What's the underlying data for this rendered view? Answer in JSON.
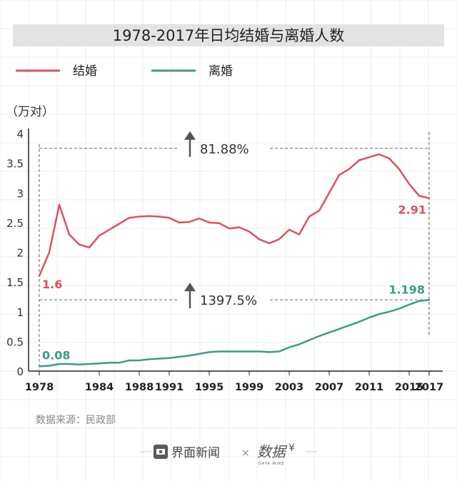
{
  "chart_data": {
    "type": "line",
    "title": "1978-2017年日均结婚与离婚人数",
    "ylabel": "（万对）",
    "ylim": [
      0,
      4
    ],
    "yticks": [
      "0",
      "0.5",
      "1",
      "1.5",
      "2",
      "2.5",
      "3",
      "3.5",
      "4"
    ],
    "xticks": [
      "1978",
      "1984",
      "1988",
      "1991",
      "1995",
      "1999",
      "2003",
      "2007",
      "2011",
      "2015",
      "2017"
    ],
    "grid": false,
    "legend_position": "top-left",
    "x": [
      1978,
      1979,
      1980,
      1981,
      1982,
      1983,
      1984,
      1985,
      1986,
      1987,
      1988,
      1989,
      1990,
      1991,
      1992,
      1993,
      1994,
      1995,
      1996,
      1997,
      1998,
      1999,
      2000,
      2001,
      2002,
      2003,
      2004,
      2005,
      2006,
      2007,
      2008,
      2009,
      2010,
      2011,
      2012,
      2013,
      2014,
      2015,
      2016,
      2017
    ],
    "series": [
      {
        "name": "结婚",
        "color": "#e0505e",
        "values": [
          1.6,
          2.0,
          2.8,
          2.3,
          2.13,
          2.08,
          2.28,
          2.38,
          2.48,
          2.58,
          2.6,
          2.61,
          2.6,
          2.58,
          2.5,
          2.51,
          2.57,
          2.5,
          2.49,
          2.4,
          2.42,
          2.35,
          2.22,
          2.15,
          2.22,
          2.38,
          2.3,
          2.6,
          2.7,
          3.0,
          3.3,
          3.4,
          3.55,
          3.6,
          3.65,
          3.58,
          3.4,
          3.15,
          2.95,
          2.91
        ]
      },
      {
        "name": "离婚",
        "color": "#3d9b88",
        "values": [
          0.08,
          0.09,
          0.12,
          0.12,
          0.11,
          0.12,
          0.13,
          0.14,
          0.14,
          0.18,
          0.18,
          0.2,
          0.21,
          0.22,
          0.24,
          0.26,
          0.29,
          0.32,
          0.33,
          0.33,
          0.33,
          0.33,
          0.33,
          0.32,
          0.33,
          0.4,
          0.45,
          0.52,
          0.59,
          0.65,
          0.71,
          0.77,
          0.83,
          0.9,
          0.96,
          1.0,
          1.05,
          1.12,
          1.18,
          1.198
        ]
      }
    ],
    "annotations": [
      {
        "label": "81.88%",
        "arrow": "up",
        "ref_value": 3.75
      },
      {
        "label": "1397.5%",
        "arrow": "up",
        "ref_value": 1.2
      }
    ],
    "endpoint_labels": [
      {
        "text": "1.6",
        "series": 0,
        "at": "start"
      },
      {
        "text": "2.91",
        "series": 0,
        "at": "end"
      },
      {
        "text": "0.08",
        "series": 1,
        "at": "start"
      },
      {
        "text": "1.198",
        "series": 1,
        "at": "end"
      }
    ]
  },
  "source": "数据来源：民政部",
  "footer": {
    "brand1": "界面新闻",
    "separator": "×",
    "watermark": "数据",
    "watermark_sub": "DATA WIRE"
  }
}
